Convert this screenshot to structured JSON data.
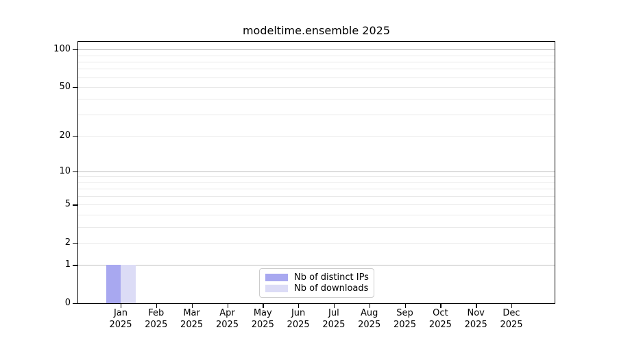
{
  "figure": {
    "title": "modeltime.ensemble 2025"
  },
  "chart_data": {
    "type": "bar",
    "title": "modeltime.ensemble 2025",
    "xlabel": "",
    "ylabel": "",
    "categories": [
      "Jan",
      "Feb",
      "Mar",
      "Apr",
      "May",
      "Jun",
      "Jul",
      "Aug",
      "Sep",
      "Oct",
      "Nov",
      "Dec"
    ],
    "category_year_line": "2025",
    "series": [
      {
        "name": "Nb of distinct IPs",
        "color": "#a8a8f0",
        "values": [
          1,
          0,
          0,
          0,
          0,
          0,
          0,
          0,
          0,
          0,
          0,
          0
        ]
      },
      {
        "name": "Nb of downloads",
        "color": "#dcdcf6",
        "values": [
          1,
          0,
          0,
          0,
          0,
          0,
          0,
          0,
          0,
          0,
          0,
          0
        ]
      }
    ],
    "y_axis": {
      "scale": "log1p",
      "tick_labels": [
        0,
        1,
        2,
        5,
        10,
        20,
        50,
        100
      ],
      "major_gridlines": [
        1,
        10,
        100
      ],
      "minor_gridlines": [
        2,
        3,
        4,
        5,
        6,
        7,
        8,
        9,
        20,
        30,
        40,
        50,
        60,
        70,
        80,
        90
      ],
      "ylim": [
        0,
        115
      ],
      "grid": "horizontal-only"
    },
    "legend": {
      "position": "lower center",
      "entries": [
        "Nb of distinct IPs",
        "Nb of downloads"
      ]
    },
    "colors": {
      "axis_line": "#000000",
      "grid_major": "#bdbdbd",
      "grid_minor": "#e9e9e9",
      "text": "#000000",
      "legend_border": "#cccccc",
      "background": "#ffffff"
    }
  }
}
